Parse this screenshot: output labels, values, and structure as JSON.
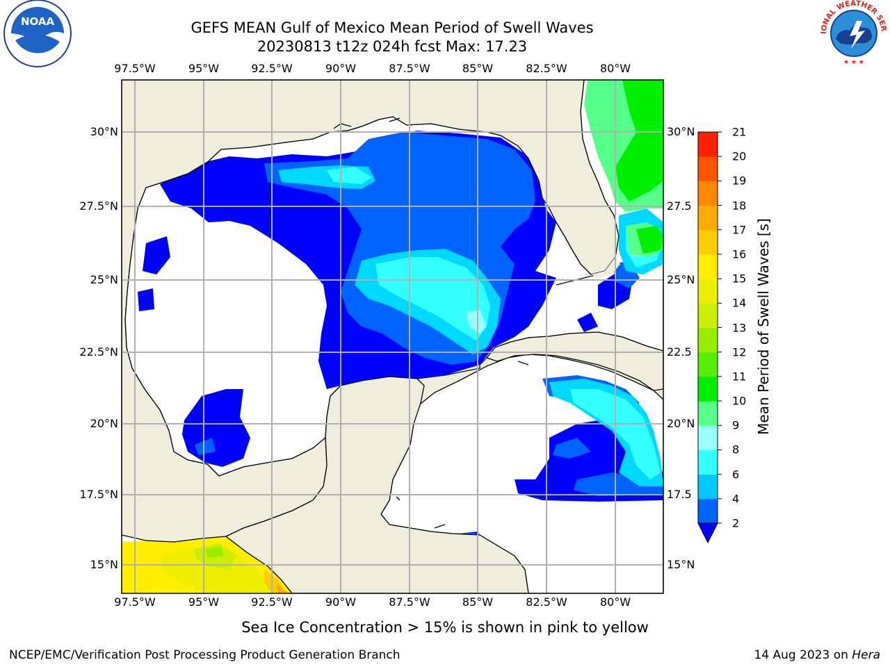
{
  "title_line1": "GEFS MEAN Gulf of Mexico Mean Period of Swell Waves",
  "title_line2": "20230813 t12z 024h fcst   Max: 17.23",
  "map": {
    "lon_ticks": [
      "97.5°W",
      "95°W",
      "92.5°W",
      "90°W",
      "87.5°W",
      "85°W",
      "82.5°W",
      "80°W"
    ],
    "lat_ticks_left": [
      "30°N",
      "27.5°N",
      "25°N",
      "22.5°N",
      "20°N",
      "17.5°N",
      "15°N"
    ],
    "lat_ticks_right": [
      "30°N",
      "27.5",
      "25°N",
      "22.5",
      "20°N",
      "17.5",
      "15°N"
    ],
    "extent": {
      "lon_min": -98.0,
      "lon_max": -78.3,
      "lat_min": 14.0,
      "lat_max": 31.8
    },
    "land_color": "#efeedc",
    "ocean_low_color": "#ffffff",
    "grid": true
  },
  "colorbar": {
    "label": "Mean Period of Swell Waves [s]",
    "ticks": [
      "2",
      "4",
      "6",
      "8",
      "9",
      "10",
      "11",
      "12",
      "13",
      "14",
      "15",
      "16",
      "17",
      "18",
      "19",
      "20",
      "21"
    ],
    "colors": [
      "#0062ff",
      "#00c8ff",
      "#33ffff",
      "#99ffff",
      "#55ff88",
      "#00ee00",
      "#55ee00",
      "#99ee00",
      "#ccee00",
      "#eeee00",
      "#ffee00",
      "#ffcc00",
      "#ffaa00",
      "#ff8800",
      "#ff5500",
      "#ff2200"
    ],
    "under_color": "#0000ff"
  },
  "subtitle": "Sea Ice Concentration > 15% is shown in pink to yellow",
  "footer_left": "NCEP/EMC/Verification Post Processing Product Generation Branch",
  "footer_right_prefix": "14 Aug 2023 on ",
  "footer_right_host": "Hera",
  "logos": {
    "left": "NOAA",
    "right": "NATIONAL WEATHER SERVICE"
  }
}
